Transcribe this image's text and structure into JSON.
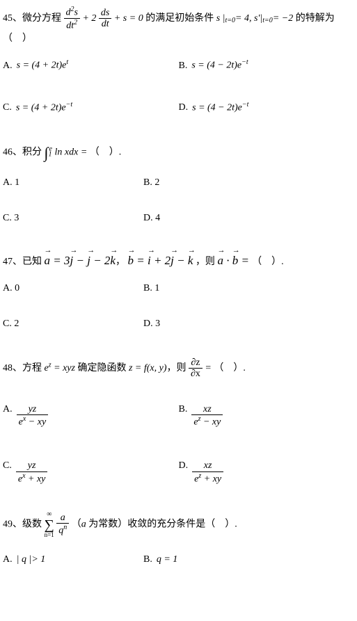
{
  "q45": {
    "num": "45、",
    "pre": "微分方程 ",
    "eq_n1": "d<sup>2</sup>s",
    "eq_d1": "dt<sup>2</sup>",
    "eq_mid": " + 2",
    "eq_n2": "ds",
    "eq_d2": "dt",
    "eq_post": " + s = 0",
    "mid1": " 的满足初始条件 ",
    "cond": "s |<sub>t=0</sub>= 4,  s'|<sub>t=0</sub>= −2",
    "mid2": " 的特解为（　）",
    "A": {
      "l": "A.",
      "m": "s = (4 + 2t)e<sup>t</sup>"
    },
    "B": {
      "l": "B.",
      "m": "s = (4 − 2t)e<sup>−t</sup>"
    },
    "C": {
      "l": "C.",
      "m": "s = (4 + 2t)e<sup>−t</sup>"
    },
    "D": {
      "l": "D.",
      "m": "s = (4 − 2t)e<sup>−t</sup>"
    }
  },
  "q46": {
    "num": "46、",
    "pre": "积分 ",
    "int_lo": "1",
    "int_hi": "e",
    "int_body": " ln <i>xdx</i> =",
    "post": " （　）.",
    "A": {
      "l": "A. 1"
    },
    "B": {
      "l": "B. 2"
    },
    "C": {
      "l": "C. 3"
    },
    "D": {
      "l": "D. 4"
    }
  },
  "q47": {
    "num": "47、",
    "pre": "已知 ",
    "a": "a",
    "eq1": " = 3",
    "j1": "j",
    "m1": " − ",
    "j2": "j",
    "m2": " − 2",
    "k1": "k",
    "c1": "， ",
    "b": "b",
    "eq2": " = ",
    "i1": "i",
    "m3": " + 2",
    "j3": "j",
    "m4": " − ",
    "k2": "k",
    "c2": " ，则 ",
    "a2": "a",
    "dot": " · ",
    "b2": "b",
    "eq3": " = ",
    "post": "（　）.",
    "A": {
      "l": "A. 0"
    },
    "B": {
      "l": "B. 1"
    },
    "C": {
      "l": "C. 2"
    },
    "D": {
      "l": "D. 3"
    }
  },
  "q48": {
    "num": "48、",
    "pre": "方程 ",
    "eq1": "e<sup>z</sup> = xyz",
    "mid1": " 确定隐函数 ",
    "eq2": "z = f(x, y)",
    "mid2": "，则 ",
    "pd_n": "∂z",
    "pd_d": "∂x",
    "eq3": " =",
    "post": " （　）.",
    "A": {
      "l": "A.",
      "n": "yz",
      "d": "e<sup>x</sup> − xy"
    },
    "B": {
      "l": "B.",
      "n": "xz",
      "d": "e<sup>z</sup> − xy"
    },
    "C": {
      "l": "C.",
      "n": "yz",
      "d": "e<sup>x</sup> + xy"
    },
    "D": {
      "l": "D.",
      "n": "xz",
      "d": "e<sup>z</sup> + xy"
    }
  },
  "q49": {
    "num": "49、",
    "pre": "级数 ",
    "sum_top": "∞",
    "sum_bot": "n=1",
    "sum_n": "a",
    "sum_d": "q<sup>n</sup>",
    "mid": " （",
    "a": "a",
    "mid2": " 为常数）收敛的充分条件是（　）.",
    "A": {
      "l": "A.",
      "m": "| q |> 1"
    },
    "B": {
      "l": "B.",
      "m": "q = 1"
    }
  }
}
